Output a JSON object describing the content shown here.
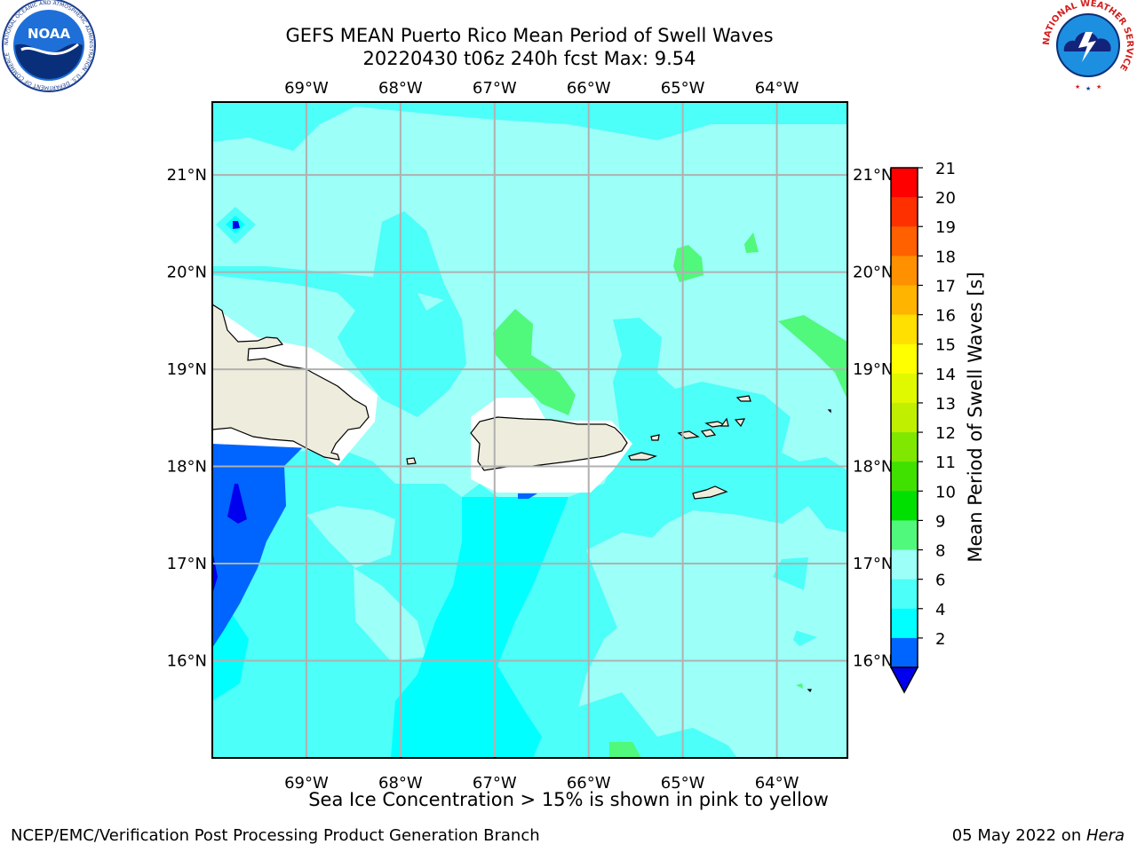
{
  "title": {
    "line1": "GEFS MEAN Puerto Rico Mean Period of Swell Waves",
    "line2": "20220430 t06z 240h fcst   Max: 9.54"
  },
  "map": {
    "lon_ticks": [
      "69°W",
      "68°W",
      "67°W",
      "66°W",
      "65°W",
      "64°W"
    ],
    "lat_ticks": [
      "21°N",
      "20°N",
      "19°N",
      "18°N",
      "17°N",
      "16°N"
    ],
    "lon_range": [
      -70.0,
      -63.25
    ],
    "lat_range": [
      15.0,
      21.75
    ],
    "colors": {
      "frame": "#000000",
      "grid": "#b0b0b0",
      "land": "#eeecdc",
      "band_2_4": "#0064ff",
      "band_4_6": "#00ffff",
      "band_6_8": "#4cfff8",
      "band_8_9": "#9cfff8",
      "band_9_10": "#50f87c",
      "low_below_2": "#0000ee"
    }
  },
  "colorbar": {
    "label": "Mean Period of Swell Waves [s]",
    "ticks": [
      "21",
      "20",
      "19",
      "18",
      "17",
      "16",
      "15",
      "14",
      "13",
      "12",
      "11",
      "10",
      "9",
      "8",
      "6",
      "4",
      "2"
    ],
    "colors": [
      "#ff0000",
      "#ff3000",
      "#ff6000",
      "#ff9000",
      "#ffb400",
      "#ffe000",
      "#ffff00",
      "#e0f800",
      "#c0f000",
      "#80e800",
      "#40e000",
      "#00e000",
      "#50f87c",
      "#9cfff8",
      "#4cfff8",
      "#00ffff",
      "#0064ff",
      "#0000ee"
    ]
  },
  "note": "Sea Ice Concentration > 15% is shown in pink to yellow",
  "footer": {
    "left": "NCEP/EMC/Verification Post Processing Product Generation Branch",
    "date": "05 May 2022 on ",
    "machine": "Hera"
  },
  "logos": {
    "noaa": {
      "text": "NOAA",
      "ring_text": "NATIONAL OCEANIC AND ATMOSPHERIC ADMINISTRATION · U.S. DEPARTMENT OF COMMERCE"
    },
    "nws": {
      "ring_text": "NATIONAL WEATHER SERVICE"
    }
  }
}
